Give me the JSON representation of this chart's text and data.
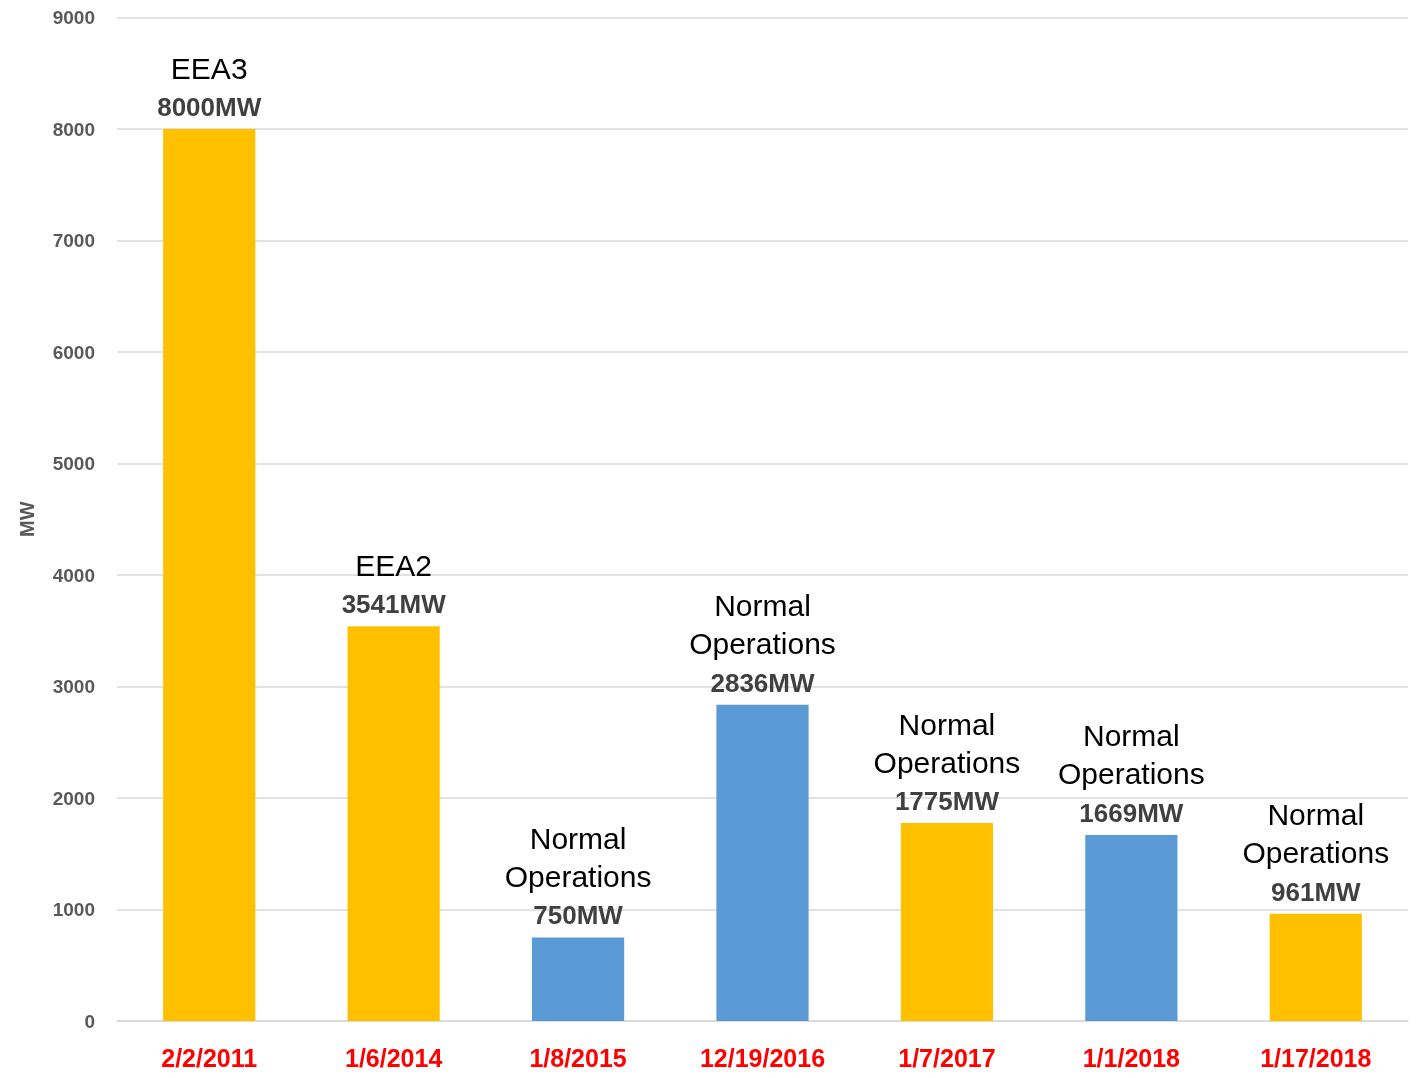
{
  "chart_data": {
    "type": "bar",
    "ylabel": "MW",
    "categories": [
      "2/2/2011",
      "1/6/2014",
      "1/8/2015",
      "12/19/2016",
      "1/7/2017",
      "1/1/2018",
      "1/17/2018"
    ],
    "values": [
      8000,
      3541,
      750,
      2836,
      1775,
      1669,
      961
    ],
    "colors": [
      "#ffc000",
      "#ffc000",
      "#5b9bd5",
      "#5b9bd5",
      "#ffc000",
      "#5b9bd5",
      "#ffc000"
    ],
    "value_labels": [
      "8000MW",
      "3541MW",
      "750MW",
      "2836MW",
      "1775MW",
      "1669MW",
      "961MW"
    ],
    "annotations": [
      "EEA3",
      "EEA2",
      "Normal\nOperations",
      "Normal\nOperations",
      "Normal\nOperations",
      "Normal\nOperations",
      "Normal\nOperations"
    ],
    "ylim": [
      0,
      9000
    ],
    "yticks": [
      0,
      1000,
      2000,
      3000,
      4000,
      5000,
      6000,
      7000,
      8000,
      9000
    ],
    "grid": "y"
  }
}
